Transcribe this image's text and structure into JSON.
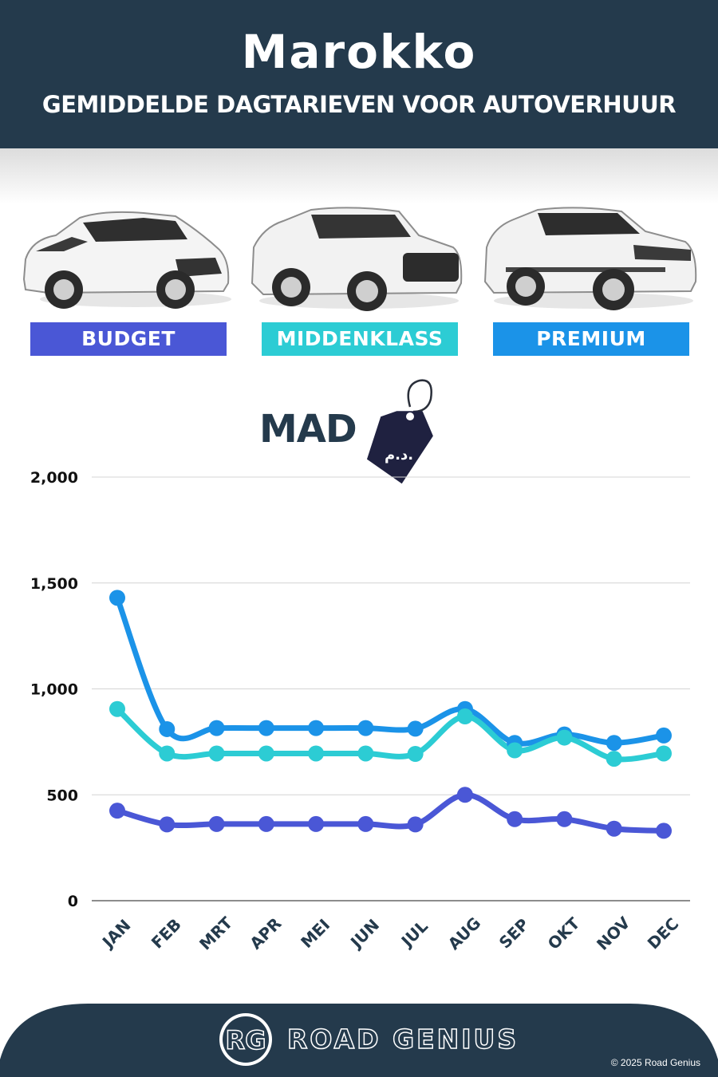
{
  "header": {
    "title": "Marokko",
    "subtitle": "GEMIDDELDE DAGTARIEVEN VOOR AUTOVERHUUR"
  },
  "categories": [
    {
      "label": "BUDGET",
      "color": "#4a57d6"
    },
    {
      "label": "MIDDENKLASS",
      "color": "#2cccd4"
    },
    {
      "label": "PREMIUM",
      "color": "#1b93e8"
    }
  ],
  "currency": {
    "code": "MAD",
    "tag_text": "د.م."
  },
  "chart_data": {
    "type": "line",
    "title": "",
    "xlabel": "",
    "ylabel": "",
    "categories": [
      "JAN",
      "FEB",
      "MRT",
      "APR",
      "MEI",
      "JUN",
      "JUL",
      "AUG",
      "SEP",
      "OKT",
      "NOV",
      "DEC"
    ],
    "ylim": [
      0,
      2000
    ],
    "yticks": [
      0,
      500,
      1000,
      1500,
      2000
    ],
    "ytick_labels": [
      "0",
      "500",
      "1,000",
      "1,500",
      "2,000"
    ],
    "grid": true,
    "series": [
      {
        "name": "PREMIUM",
        "color": "#1b93e8",
        "values": [
          1430,
          810,
          815,
          815,
          815,
          815,
          812,
          905,
          745,
          785,
          745,
          780
        ]
      },
      {
        "name": "MIDDENKLASS",
        "color": "#2cccd4",
        "values": [
          905,
          695,
          695,
          695,
          695,
          695,
          693,
          870,
          710,
          770,
          670,
          695
        ]
      },
      {
        "name": "BUDGET",
        "color": "#4a57d6",
        "values": [
          425,
          360,
          362,
          362,
          362,
          362,
          360,
          500,
          385,
          385,
          340,
          330
        ]
      }
    ]
  },
  "footer": {
    "logo_text": "RG",
    "brand": "ROAD GENIUS",
    "copyright": "© 2025 Road Genius"
  }
}
